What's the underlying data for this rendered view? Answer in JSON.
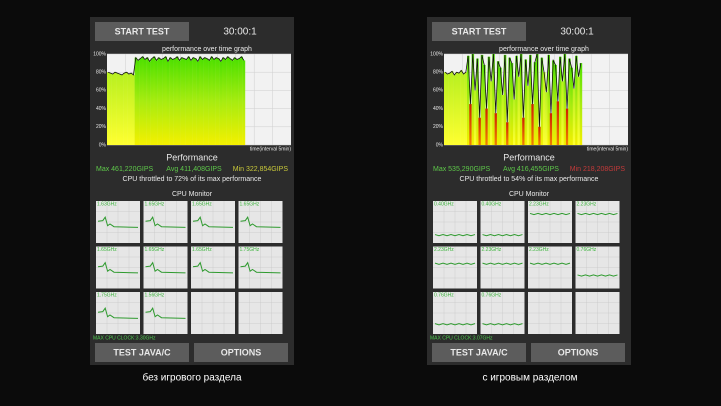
{
  "panels": [
    {
      "start_button": "START TEST",
      "timer": "30:00:1",
      "graph_title": "performance over time graph",
      "yticks": [
        "100%",
        "80%",
        "60%",
        "40%",
        "20%",
        "0%"
      ],
      "x_label": "time(interval 5min)",
      "performance": {
        "values": [
          80,
          79,
          78,
          80,
          79,
          78,
          77,
          79,
          80,
          78,
          79,
          77,
          96,
          93,
          95,
          97,
          94,
          96,
          92,
          95,
          97,
          93,
          96,
          94,
          95,
          97,
          92,
          96,
          94,
          95,
          97,
          93,
          96,
          95,
          94,
          97,
          93,
          96,
          95,
          92,
          97,
          94,
          96,
          95,
          93,
          97,
          94,
          96,
          95,
          92,
          96,
          94,
          97,
          95,
          93,
          96,
          94,
          95,
          97,
          93
        ]
      },
      "heading": "Performance",
      "max": "Max 461,220GIPS",
      "avg": "Avg 411,408GIPS",
      "min": "Min 322,854GIPS",
      "min_color": "#c8c83a",
      "throttle": "CPU throttled to 72% of its max performance",
      "monitor_title": "CPU Monitor",
      "cores": [
        "1.63GHz",
        "1.65GHz",
        "1.65GHz",
        "1.65GHz",
        "1.65GHz",
        "1.65GHz",
        "1.65GHz",
        "1.75GHz",
        "1.75GHz",
        "1.56GHz"
      ],
      "max_clock": "MAX CPU CLOCK:3.30GHz",
      "buttons": [
        "TEST JAVA/C",
        "OPTIONS"
      ],
      "caption": "без игрового раздела"
    },
    {
      "start_button": "START TEST",
      "timer": "30:00:1",
      "graph_title": "performance over time graph",
      "yticks": [
        "100%",
        "80%",
        "60%",
        "40%",
        "20%",
        "0%"
      ],
      "x_label": "time(interval 5min)",
      "performance": {
        "values": [
          80,
          78,
          79,
          81,
          77,
          80,
          79,
          82,
          78,
          80,
          98,
          45,
          100,
          60,
          95,
          30,
          99,
          88,
          40,
          97,
          70,
          100,
          35,
          92,
          85,
          55,
          99,
          25,
          96,
          90,
          50,
          98,
          75,
          100,
          30,
          94,
          65,
          99,
          45,
          91,
          100,
          20,
          96,
          80,
          58,
          99,
          35,
          93,
          88,
          48,
          97,
          70,
          100,
          40,
          95,
          85,
          62,
          98,
          75,
          90
        ]
      },
      "heading": "Performance",
      "max": "Max 535,290GIPS",
      "avg": "Avg 416,455GIPS",
      "min": "Min 218,208GIPS",
      "min_color": "#c43a3a",
      "throttle": "CPU throttled to 54% of its max performance",
      "monitor_title": "CPU Monitor",
      "cores": [
        "0.40GHz",
        "0.40GHz",
        "2.23GHz",
        "2.23GHz",
        "2.23GHz",
        "2.23GHz",
        "2.23GHz",
        "0.76GHz",
        "0.76GHz",
        "0.76GHz"
      ],
      "max_clock": "MAX CPU CLOCK:3.07GHz",
      "buttons": [
        "TEST JAVA/C",
        "OPTIONS"
      ],
      "caption": "с игровым разделом"
    }
  ]
}
